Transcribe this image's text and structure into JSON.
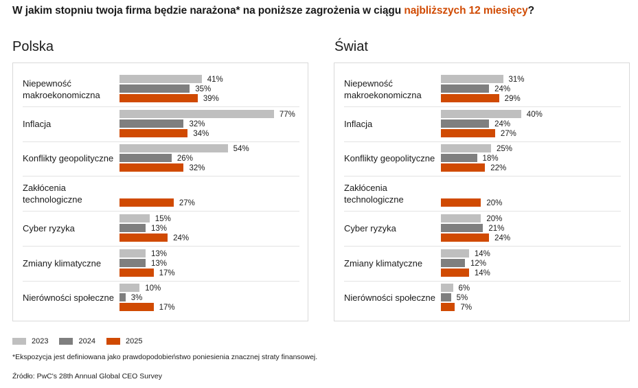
{
  "title": {
    "prefix": "W jakim stopniu twoja firma będzie narażona* na poniższe zagrożenia w ciągu ",
    "highlight": "najbliższych 12 miesięcy",
    "suffix": "?"
  },
  "colors": {
    "2023": "#bfbfbf",
    "2024": "#7f7f7f",
    "2025": "#d04a02",
    "highlight": "#d04a02"
  },
  "legend": [
    "2023",
    "2024",
    "2025"
  ],
  "footnote": "*Ekspozycja jest definiowana jako prawdopodobieństwo poniesienia znacznej straty finansowej.",
  "source": "Źródło: PwC's 28th Annual Global CEO Survey",
  "chart_data": [
    {
      "type": "bar",
      "orientation": "horizontal",
      "title": "Polska",
      "unit": "%",
      "categories": [
        "Niepewność makroekonomiczna",
        "Inflacja",
        "Konflikty geopolityczne",
        "Zakłócenia technologiczne",
        "Cyber ryzyka",
        "Zmiany klimatyczne",
        "Nierówności społeczne"
      ],
      "series": [
        {
          "name": "2023",
          "values": [
            41,
            77,
            54,
            null,
            15,
            13,
            10
          ]
        },
        {
          "name": "2024",
          "values": [
            35,
            32,
            26,
            null,
            13,
            13,
            3
          ]
        },
        {
          "name": "2025",
          "values": [
            39,
            34,
            32,
            27,
            24,
            17,
            17
          ]
        }
      ]
    },
    {
      "type": "bar",
      "orientation": "horizontal",
      "title": "Świat",
      "unit": "%",
      "categories": [
        "Niepewność makroekonomiczna",
        "Inflacja",
        "Konflikty geopolityczne",
        "Zakłócenia technologiczne",
        "Cyber ryzyka",
        "Zmiany klimatyczne",
        "Nierówności społeczne"
      ],
      "series": [
        {
          "name": "2023",
          "values": [
            31,
            40,
            25,
            null,
            20,
            14,
            6
          ]
        },
        {
          "name": "2024",
          "values": [
            24,
            24,
            18,
            null,
            21,
            12,
            5
          ]
        },
        {
          "name": "2025",
          "values": [
            29,
            27,
            22,
            20,
            24,
            14,
            7
          ]
        }
      ]
    }
  ]
}
